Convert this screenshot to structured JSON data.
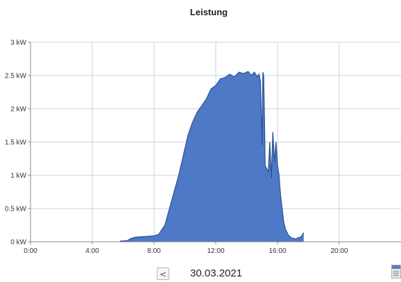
{
  "chart_data": {
    "type": "area",
    "title": "Leistung",
    "xlabel": "",
    "ylabel": "",
    "x_unit": "hours",
    "xlim": [
      0,
      24
    ],
    "ylim": [
      0,
      3
    ],
    "x_ticks": [
      {
        "value": 0,
        "label": "0:00"
      },
      {
        "value": 4,
        "label": "4:00"
      },
      {
        "value": 8,
        "label": "8:00"
      },
      {
        "value": 12,
        "label": "12:00"
      },
      {
        "value": 16,
        "label": "16:00"
      },
      {
        "value": 20,
        "label": "20:00"
      }
    ],
    "y_ticks": [
      {
        "value": 0,
        "label": "0 kW"
      },
      {
        "value": 0.5,
        "label": "0.5 kW"
      },
      {
        "value": 1,
        "label": "1 kW"
      },
      {
        "value": 1.5,
        "label": "1.5 kW"
      },
      {
        "value": 2,
        "label": "2 kW"
      },
      {
        "value": 2.5,
        "label": "2.5 kW"
      },
      {
        "value": 3,
        "label": "3 kW"
      }
    ],
    "grid": true,
    "series": [
      {
        "color": "#4472c4",
        "line_color": "#2f5597",
        "x": [
          5.8,
          6.3,
          6.5,
          6.8,
          7.5,
          8.0,
          8.3,
          8.7,
          9.0,
          9.3,
          9.6,
          9.9,
          10.2,
          10.5,
          10.8,
          11.1,
          11.4,
          11.7,
          12.0,
          12.3,
          12.6,
          12.9,
          13.2,
          13.5,
          13.8,
          14.1,
          14.3,
          14.5,
          14.7,
          14.8,
          14.9,
          15.0,
          15.05,
          15.1,
          15.15,
          15.2,
          15.3,
          15.4,
          15.5,
          15.6,
          15.7,
          15.8,
          15.9,
          16.0,
          16.1,
          16.2,
          16.3,
          16.4,
          16.5,
          16.6,
          16.7,
          16.8,
          16.9,
          17.0,
          17.1,
          17.2,
          17.3,
          17.5,
          17.6,
          17.7
        ],
        "values": [
          0.01,
          0.02,
          0.05,
          0.07,
          0.08,
          0.09,
          0.11,
          0.25,
          0.5,
          0.75,
          1.0,
          1.3,
          1.6,
          1.8,
          1.95,
          2.05,
          2.15,
          2.3,
          2.35,
          2.45,
          2.47,
          2.52,
          2.48,
          2.55,
          2.53,
          2.56,
          2.5,
          2.55,
          2.48,
          2.52,
          2.4,
          1.45,
          2.55,
          2.5,
          1.9,
          1.15,
          1.1,
          1.05,
          1.5,
          0.95,
          1.65,
          1.2,
          1.5,
          1.15,
          1.0,
          0.7,
          0.5,
          0.3,
          0.2,
          0.15,
          0.1,
          0.08,
          0.06,
          0.05,
          0.05,
          0.04,
          0.06,
          0.07,
          0.1,
          0.14
        ]
      }
    ]
  },
  "footer": {
    "prev_label": "<",
    "date": "30.03.2021",
    "calendar_icon": "calendar-icon"
  }
}
